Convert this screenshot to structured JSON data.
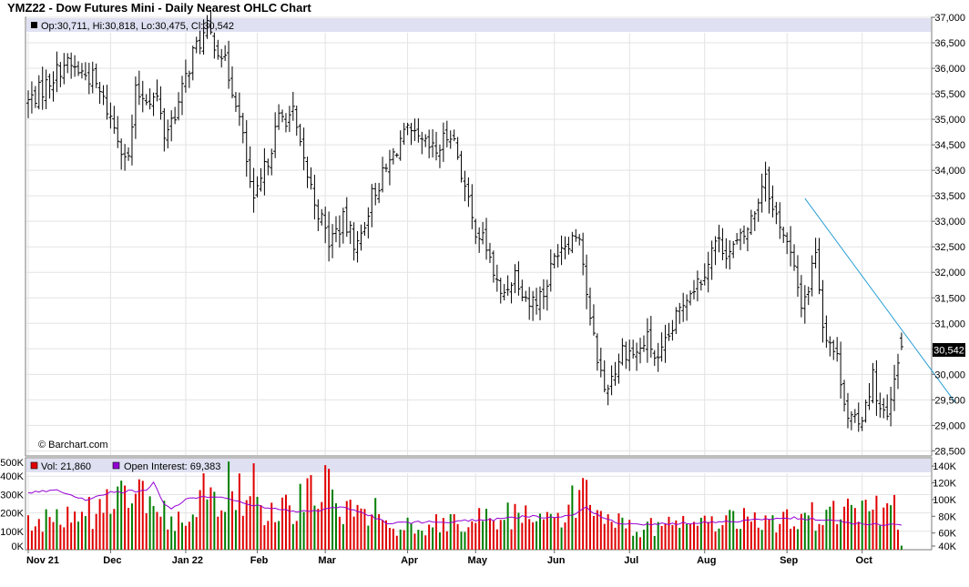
{
  "chart_data": [
    {
      "type": "ohlc",
      "title": "YMZ22 - Dow Futures Mini - Daily Nearest OHLC Chart",
      "info": "Op:30,711, Hi:30,818, Lo:30,475, Cl:30,542",
      "copyright": "© Barchart.com",
      "last_price_label": "30,542",
      "last_price": 30542,
      "ylim": [
        28400,
        37000
      ],
      "y_ticks": [
        "28,500",
        "29,000",
        "29,500",
        "30,000",
        "30,500",
        "31,000",
        "31,500",
        "32,000",
        "32,500",
        "33,000",
        "33,500",
        "34,000",
        "34,500",
        "35,000",
        "35,500",
        "36,000",
        "36,500",
        "37,000"
      ],
      "months": [
        "Nov 21",
        "Dec",
        "Jan 22",
        "Feb",
        "Mar",
        "Apr",
        "May",
        "Jun",
        "Jul",
        "Aug",
        "Sep",
        "Oct"
      ],
      "month_start_index": [
        0,
        23,
        44,
        64,
        83,
        106,
        125,
        147,
        168,
        189,
        212,
        233
      ],
      "trendline": {
        "start_index": 217,
        "start_price": 33450,
        "end_index": 259,
        "end_price": 29450
      },
      "close_anchors": [
        [
          0,
          35350
        ],
        [
          4,
          35600
        ],
        [
          10,
          36100
        ],
        [
          14,
          35950
        ],
        [
          18,
          35800
        ],
        [
          22,
          35200
        ],
        [
          26,
          34500
        ],
        [
          28,
          34200
        ],
        [
          30,
          35500
        ],
        [
          36,
          35400
        ],
        [
          38,
          34700
        ],
        [
          42,
          35300
        ],
        [
          46,
          36300
        ],
        [
          50,
          36750
        ],
        [
          54,
          36300
        ],
        [
          58,
          35400
        ],
        [
          60,
          34600
        ],
        [
          63,
          33300
        ],
        [
          66,
          34000
        ],
        [
          70,
          35000
        ],
        [
          74,
          35100
        ],
        [
          76,
          34400
        ],
        [
          80,
          33400
        ],
        [
          84,
          32600
        ],
        [
          88,
          33000
        ],
        [
          92,
          32500
        ],
        [
          96,
          33500
        ],
        [
          100,
          34000
        ],
        [
          104,
          34600
        ],
        [
          106,
          34700
        ],
        [
          110,
          34500
        ],
        [
          114,
          34350
        ],
        [
          118,
          34800
        ],
        [
          120,
          34300
        ],
        [
          124,
          33000
        ],
        [
          128,
          32500
        ],
        [
          132,
          31500
        ],
        [
          136,
          32000
        ],
        [
          140,
          31400
        ],
        [
          144,
          31600
        ],
        [
          148,
          32500
        ],
        [
          152,
          32700
        ],
        [
          154,
          32800
        ],
        [
          157,
          31000
        ],
        [
          161,
          29700
        ],
        [
          164,
          30100
        ],
        [
          166,
          30500
        ],
        [
          170,
          30400
        ],
        [
          173,
          30700
        ],
        [
          176,
          30200
        ],
        [
          180,
          30900
        ],
        [
          184,
          31600
        ],
        [
          188,
          31900
        ],
        [
          192,
          32600
        ],
        [
          196,
          32400
        ],
        [
          200,
          32700
        ],
        [
          203,
          33200
        ],
        [
          206,
          34000
        ],
        [
          208,
          33200
        ],
        [
          210,
          33000
        ],
        [
          213,
          32300
        ],
        [
          216,
          31400
        ],
        [
          218,
          31700
        ],
        [
          220,
          32500
        ],
        [
          222,
          31000
        ],
        [
          226,
          30300
        ],
        [
          229,
          29200
        ],
        [
          232,
          28950
        ],
        [
          234,
          29500
        ],
        [
          236,
          29950
        ],
        [
          238,
          29300
        ],
        [
          240,
          29100
        ],
        [
          242,
          29800
        ],
        [
          244,
          30542
        ]
      ],
      "volume_panel": {
        "vol_label": "Vol: 21,860",
        "oi_label": "Open Interest: 69,383",
        "vol_ylim": [
          0,
          500000
        ],
        "vol_ticks": [
          "0K",
          "100K",
          "200K",
          "300K",
          "400K",
          "500K"
        ],
        "oi_ylim": [
          40000,
          150000
        ],
        "oi_ticks": [
          "40K",
          "60K",
          "80K",
          "100K",
          "120K",
          "140K"
        ],
        "volume_anchors": [
          [
            0,
            140000
          ],
          [
            10,
            170000
          ],
          [
            20,
            210000
          ],
          [
            28,
            290000
          ],
          [
            36,
            230000
          ],
          [
            40,
            160000
          ],
          [
            46,
            260000
          ],
          [
            52,
            320000
          ],
          [
            58,
            350000
          ],
          [
            62,
            230000
          ],
          [
            66,
            180000
          ],
          [
            72,
            220000
          ],
          [
            76,
            250000
          ],
          [
            80,
            290000
          ],
          [
            84,
            260000
          ],
          [
            90,
            210000
          ],
          [
            96,
            240000
          ],
          [
            100,
            150000
          ],
          [
            104,
            120000
          ],
          [
            112,
            140000
          ],
          [
            120,
            150000
          ],
          [
            126,
            170000
          ],
          [
            132,
            180000
          ],
          [
            140,
            170000
          ],
          [
            146,
            150000
          ],
          [
            150,
            160000
          ],
          [
            154,
            330000
          ],
          [
            158,
            210000
          ],
          [
            162,
            150000
          ],
          [
            170,
            120000
          ],
          [
            178,
            130000
          ],
          [
            186,
            160000
          ],
          [
            190,
            140000
          ],
          [
            196,
            150000
          ],
          [
            202,
            160000
          ],
          [
            210,
            150000
          ],
          [
            214,
            170000
          ],
          [
            220,
            180000
          ],
          [
            226,
            190000
          ],
          [
            232,
            200000
          ],
          [
            238,
            210000
          ],
          [
            242,
            220000
          ],
          [
            244,
            21860
          ]
        ],
        "oi_anchors": [
          [
            0,
            108000
          ],
          [
            8,
            112000
          ],
          [
            12,
            105000
          ],
          [
            16,
            100000
          ],
          [
            22,
            108000
          ],
          [
            28,
            110000
          ],
          [
            33,
            110000
          ],
          [
            35,
            120000
          ],
          [
            38,
            95000
          ],
          [
            40,
            88000
          ],
          [
            44,
            100000
          ],
          [
            48,
            104000
          ],
          [
            54,
            102000
          ],
          [
            60,
            96000
          ],
          [
            68,
            89000
          ],
          [
            74,
            86000
          ],
          [
            80,
            86000
          ],
          [
            84,
            90000
          ],
          [
            88,
            90000
          ],
          [
            92,
            86000
          ],
          [
            96,
            80000
          ],
          [
            100,
            72000
          ],
          [
            110,
            73000
          ],
          [
            120,
            74000
          ],
          [
            130,
            76000
          ],
          [
            140,
            80000
          ],
          [
            148,
            79000
          ],
          [
            152,
            80000
          ],
          [
            156,
            90000
          ],
          [
            160,
            80000
          ],
          [
            166,
            70000
          ],
          [
            176,
            71000
          ],
          [
            186,
            72000
          ],
          [
            196,
            74000
          ],
          [
            206,
            76000
          ],
          [
            214,
            78000
          ],
          [
            222,
            76000
          ],
          [
            230,
            72000
          ],
          [
            238,
            70000
          ],
          [
            244,
            69383
          ]
        ]
      }
    }
  ]
}
